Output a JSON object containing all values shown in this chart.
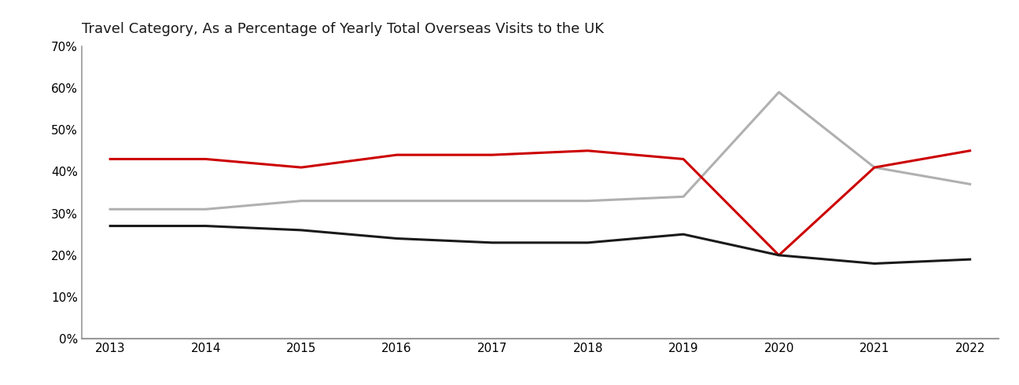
{
  "title": "Travel Category, As a Percentage of Yearly Total Overseas Visits to the UK",
  "years": [
    2013,
    2014,
    2015,
    2016,
    2017,
    2018,
    2019,
    2020,
    2021,
    2022
  ],
  "red_line": [
    43,
    43,
    41,
    44,
    44,
    45,
    43,
    20,
    41,
    45
  ],
  "gray_line": [
    31,
    31,
    33,
    33,
    33,
    33,
    34,
    59,
    41,
    37
  ],
  "black_line": [
    27,
    27,
    26,
    24,
    23,
    23,
    25,
    20,
    18,
    19
  ],
  "red_color": "#cc0000",
  "gray_color": "#b0b0b0",
  "black_color": "#1a1a1a",
  "ylim": [
    0,
    70
  ],
  "yticks": [
    0,
    10,
    20,
    30,
    40,
    50,
    60,
    70
  ],
  "title_fontsize": 13,
  "tick_fontsize": 11,
  "line_width": 2.2,
  "background_color": "#ffffff",
  "spine_color": "#999999"
}
